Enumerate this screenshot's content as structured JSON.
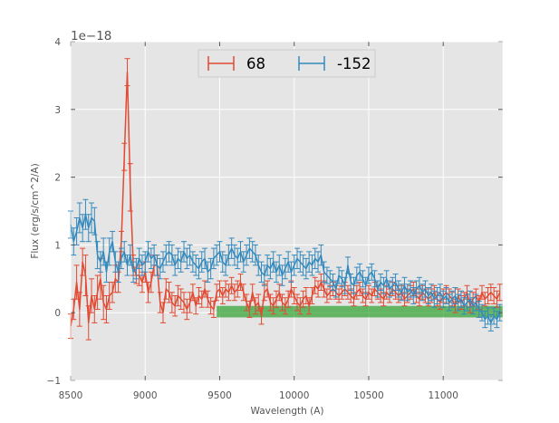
{
  "chart_data": {
    "type": "line",
    "title": "",
    "xlabel": "Wavelength (A)",
    "ylabel": "Flux (erg/s/cm^2/A)",
    "y_offset_label": "1e−18",
    "xlim": [
      8500,
      11400
    ],
    "ylim": [
      -1,
      4
    ],
    "x_ticks": [
      8500,
      9000,
      9500,
      10000,
      10500,
      11000
    ],
    "x_tick_labels": [
      "8500",
      "9000",
      "9500",
      "10000",
      "10500",
      "11000"
    ],
    "y_ticks": [
      -1,
      0,
      1,
      2,
      3,
      4
    ],
    "y_tick_labels": [
      "−1",
      "0",
      "1",
      "2",
      "3",
      "4"
    ],
    "grid": true,
    "legend_position": "top-center",
    "colors": {
      "background": "#e5e5e5",
      "grid": "#ffffff",
      "series_68": "#e24a33",
      "series_m152": "#348abd",
      "band": "#2ca02c"
    },
    "series": [
      {
        "name": "68",
        "color": "#e24a33",
        "x": [
          8500,
          8520,
          8540,
          8560,
          8580,
          8600,
          8620,
          8640,
          8660,
          8680,
          8700,
          8720,
          8740,
          8760,
          8780,
          8800,
          8820,
          8840,
          8860,
          8880,
          8900,
          8920,
          8940,
          8960,
          8980,
          9000,
          9020,
          9040,
          9060,
          9080,
          9100,
          9120,
          9140,
          9160,
          9180,
          9200,
          9220,
          9240,
          9260,
          9280,
          9300,
          9320,
          9340,
          9360,
          9380,
          9400,
          9420,
          9440,
          9460,
          9480,
          9500,
          9520,
          9540,
          9560,
          9580,
          9600,
          9620,
          9640,
          9660,
          9680,
          9700,
          9720,
          9740,
          9760,
          9780,
          9800,
          9820,
          9840,
          9860,
          9880,
          9900,
          9920,
          9940,
          9960,
          9980,
          10000,
          10020,
          10040,
          10060,
          10080,
          10100,
          10120,
          10140,
          10160,
          10180,
          10200,
          10220,
          10240,
          10260,
          10280,
          10300,
          10320,
          10340,
          10360,
          10380,
          10400,
          10420,
          10440,
          10460,
          10480,
          10500,
          10520,
          10540,
          10560,
          10580,
          10600,
          10620,
          10640,
          10660,
          10680,
          10700,
          10720,
          10740,
          10760,
          10780,
          10800,
          10820,
          10840,
          10860,
          10880,
          10900,
          10920,
          10940,
          10960,
          10980,
          11000,
          11020,
          11040,
          11060,
          11080,
          11100,
          11120,
          11140,
          11160,
          11180,
          11200,
          11220,
          11240,
          11260,
          11280,
          11300,
          11320,
          11340,
          11360,
          11380
        ],
        "y": [
          -0.2,
          0.05,
          0.45,
          0.05,
          0.75,
          0.55,
          -0.15,
          0.25,
          0.05,
          0.3,
          0.5,
          0.15,
          0.05,
          0.25,
          0.3,
          0.5,
          0.45,
          1.05,
          2.3,
          3.55,
          1.85,
          0.7,
          0.55,
          0.55,
          0.45,
          0.6,
          0.3,
          0.45,
          0.7,
          0.7,
          0.15,
          0,
          0.35,
          0.3,
          0.15,
          0.1,
          0.25,
          0.2,
          0.15,
          0.05,
          0.15,
          0.3,
          0.1,
          0.25,
          0.2,
          0.35,
          0.2,
          0.1,
          0.05,
          0.3,
          0.35,
          0.25,
          0.35,
          0.3,
          0.4,
          0.3,
          0.35,
          0.45,
          0.3,
          0.15,
          0.05,
          0.3,
          0.1,
          0.15,
          -0.05,
          0.3,
          0.35,
          0.15,
          0.1,
          0.2,
          0.3,
          0.15,
          0.1,
          0.2,
          0.35,
          0.25,
          0.15,
          0.1,
          0.2,
          0.25,
          0.1,
          0.25,
          0.4,
          0.35,
          0.45,
          0.35,
          0.25,
          0.3,
          0.35,
          0.3,
          0.25,
          0.3,
          0.35,
          0.3,
          0.25,
          0.2,
          0.3,
          0.35,
          0.25,
          0.2,
          0.3,
          0.25,
          0.35,
          0.3,
          0.25,
          0.2,
          0.3,
          0.25,
          0.35,
          0.3,
          0.25,
          0.3,
          0.2,
          0.25,
          0.3,
          0.35,
          0.25,
          0.2,
          0.3,
          0.25,
          0.2,
          0.25,
          0.3,
          0.2,
          0.15,
          0.25,
          0.3,
          0.25,
          0.2,
          0.1,
          0.25,
          0.15,
          0.2,
          0.3,
          0.1,
          0.2,
          0.25,
          0.15,
          0.3,
          0.2,
          0.25,
          0.3,
          0.25,
          0.2,
          0.3
        ],
        "yerr": [
          0.18,
          0.15,
          0.25,
          0.25,
          0.2,
          0.3,
          0.25,
          0.25,
          0.2,
          0.25,
          0.3,
          0.25,
          0.2,
          0.2,
          0.15,
          0.2,
          0.15,
          0.15,
          0.2,
          0.2,
          0.35,
          0.15,
          0.12,
          0.15,
          0.15,
          0.15,
          0.15,
          0.15,
          0.15,
          0.15,
          0.15,
          0.15,
          0.15,
          0.15,
          0.15,
          0.15,
          0.15,
          0.15,
          0.15,
          0.15,
          0.15,
          0.12,
          0.12,
          0.12,
          0.12,
          0.12,
          0.12,
          0.12,
          0.12,
          0.12,
          0.12,
          0.12,
          0.12,
          0.12,
          0.12,
          0.12,
          0.12,
          0.12,
          0.12,
          0.12,
          0.12,
          0.12,
          0.12,
          0.12,
          0.12,
          0.12,
          0.12,
          0.12,
          0.12,
          0.12,
          0.12,
          0.12,
          0.12,
          0.12,
          0.12,
          0.12,
          0.12,
          0.12,
          0.12,
          0.12,
          0.12,
          0.12,
          0.12,
          0.12,
          0.12,
          0.12,
          0.1,
          0.1,
          0.1,
          0.1,
          0.1,
          0.1,
          0.1,
          0.1,
          0.1,
          0.1,
          0.1,
          0.1,
          0.1,
          0.1,
          0.1,
          0.1,
          0.1,
          0.1,
          0.1,
          0.1,
          0.1,
          0.1,
          0.1,
          0.1,
          0.1,
          0.1,
          0.1,
          0.1,
          0.1,
          0.1,
          0.1,
          0.1,
          0.1,
          0.1,
          0.1,
          0.1,
          0.1,
          0.1,
          0.1,
          0.1,
          0.1,
          0.1,
          0.1,
          0.1,
          0.1,
          0.1,
          0.1,
          0.1,
          0.1,
          0.1,
          0.1,
          0.1,
          0.1,
          0.1,
          0.12,
          0.12,
          0.12,
          0.12,
          0.12
        ]
      },
      {
        "name": "-152",
        "color": "#348abd",
        "x": [
          8500,
          8520,
          8540,
          8560,
          8580,
          8600,
          8620,
          8640,
          8660,
          8680,
          8700,
          8720,
          8740,
          8760,
          8780,
          8800,
          8820,
          8840,
          8860,
          8880,
          8900,
          8920,
          8940,
          8960,
          8980,
          9000,
          9020,
          9040,
          9060,
          9080,
          9100,
          9120,
          9140,
          9160,
          9180,
          9200,
          9220,
          9240,
          9260,
          9280,
          9300,
          9320,
          9340,
          9360,
          9380,
          9400,
          9420,
          9440,
          9460,
          9480,
          9500,
          9520,
          9540,
          9560,
          9580,
          9600,
          9620,
          9640,
          9660,
          9680,
          9700,
          9720,
          9740,
          9760,
          9780,
          9800,
          9820,
          9840,
          9860,
          9880,
          9900,
          9920,
          9940,
          9960,
          9980,
          10000,
          10020,
          10040,
          10060,
          10080,
          10100,
          10120,
          10140,
          10160,
          10180,
          10200,
          10220,
          10240,
          10260,
          10280,
          10300,
          10320,
          10340,
          10360,
          10380,
          10400,
          10420,
          10440,
          10460,
          10480,
          10500,
          10520,
          10540,
          10560,
          10580,
          10600,
          10620,
          10640,
          10660,
          10680,
          10700,
          10720,
          10740,
          10760,
          10780,
          10800,
          10820,
          10840,
          10860,
          10880,
          10900,
          10920,
          10940,
          10960,
          10980,
          11000,
          11020,
          11040,
          11060,
          11080,
          11100,
          11120,
          11140,
          11160,
          11180,
          11200,
          11220,
          11240,
          11260,
          11280,
          11300,
          11320,
          11340,
          11360,
          11380
        ],
        "y": [
          1.3,
          1.05,
          1.2,
          1.4,
          1.25,
          1.45,
          1.25,
          1.4,
          1.35,
          0.85,
          0.75,
          0.9,
          0.6,
          0.9,
          1.05,
          0.75,
          0.6,
          0.8,
          0.9,
          0.7,
          0.85,
          0.6,
          0.65,
          0.8,
          0.7,
          0.75,
          0.9,
          0.8,
          0.85,
          0.7,
          0.65,
          0.75,
          0.85,
          0.9,
          0.85,
          0.7,
          0.8,
          0.75,
          0.9,
          0.8,
          0.85,
          0.75,
          0.7,
          0.65,
          0.75,
          0.8,
          0.6,
          0.65,
          0.8,
          0.85,
          0.9,
          0.75,
          0.7,
          0.85,
          0.95,
          0.85,
          0.8,
          0.9,
          0.75,
          0.85,
          0.95,
          0.9,
          0.85,
          0.7,
          0.6,
          0.55,
          0.7,
          0.65,
          0.75,
          0.6,
          0.7,
          0.55,
          0.65,
          0.75,
          0.6,
          0.7,
          0.8,
          0.75,
          0.7,
          0.65,
          0.75,
          0.7,
          0.8,
          0.75,
          0.85,
          0.6,
          0.55,
          0.5,
          0.45,
          0.35,
          0.55,
          0.5,
          0.4,
          0.7,
          0.45,
          0.4,
          0.55,
          0.6,
          0.5,
          0.4,
          0.55,
          0.6,
          0.5,
          0.35,
          0.45,
          0.4,
          0.5,
          0.35,
          0.4,
          0.45,
          0.35,
          0.3,
          0.4,
          0.3,
          0.35,
          0.25,
          0.35,
          0.4,
          0.3,
          0.35,
          0.25,
          0.3,
          0.2,
          0.25,
          0.3,
          0.2,
          0.25,
          0.15,
          0.2,
          0.25,
          0.15,
          0.2,
          0.1,
          0.15,
          0.2,
          0.1,
          0.15,
          0.05,
          0,
          -0.1,
          -0.05,
          -0.15,
          -0.05,
          -0.1,
          0
        ],
        "yerr": [
          0.2,
          0.2,
          0.2,
          0.22,
          0.2,
          0.22,
          0.2,
          0.22,
          0.2,
          0.2,
          0.15,
          0.2,
          0.15,
          0.2,
          0.15,
          0.15,
          0.15,
          0.15,
          0.15,
          0.15,
          0.15,
          0.15,
          0.15,
          0.15,
          0.15,
          0.15,
          0.15,
          0.15,
          0.15,
          0.15,
          0.15,
          0.15,
          0.15,
          0.15,
          0.15,
          0.15,
          0.15,
          0.15,
          0.15,
          0.15,
          0.15,
          0.15,
          0.15,
          0.15,
          0.15,
          0.15,
          0.15,
          0.15,
          0.15,
          0.15,
          0.15,
          0.15,
          0.15,
          0.15,
          0.15,
          0.15,
          0.15,
          0.15,
          0.15,
          0.15,
          0.15,
          0.15,
          0.15,
          0.15,
          0.15,
          0.15,
          0.15,
          0.15,
          0.15,
          0.15,
          0.15,
          0.15,
          0.15,
          0.15,
          0.15,
          0.15,
          0.15,
          0.15,
          0.15,
          0.15,
          0.15,
          0.15,
          0.15,
          0.15,
          0.15,
          0.15,
          0.12,
          0.12,
          0.12,
          0.12,
          0.12,
          0.12,
          0.12,
          0.12,
          0.12,
          0.12,
          0.12,
          0.12,
          0.12,
          0.12,
          0.12,
          0.12,
          0.12,
          0.12,
          0.12,
          0.12,
          0.12,
          0.12,
          0.12,
          0.12,
          0.12,
          0.12,
          0.12,
          0.12,
          0.12,
          0.12,
          0.12,
          0.12,
          0.12,
          0.12,
          0.12,
          0.12,
          0.12,
          0.12,
          0.12,
          0.12,
          0.12,
          0.12,
          0.12,
          0.12,
          0.12,
          0.12,
          0.12,
          0.12,
          0.12,
          0.12,
          0.12,
          0.12,
          0.12,
          0.12,
          0.12,
          0.12,
          0.12,
          0.12,
          0.12
        ]
      }
    ],
    "band": {
      "x_start": 9480,
      "x_end": 11400,
      "y_low": -0.07,
      "y_high": 0.1
    }
  }
}
